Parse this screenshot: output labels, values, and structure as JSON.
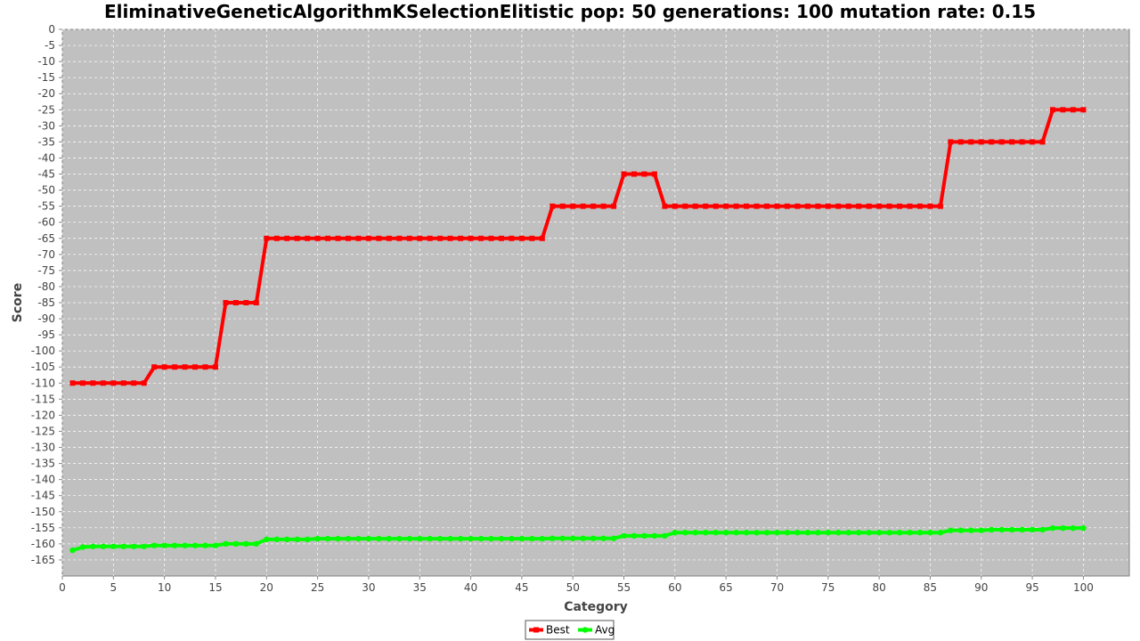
{
  "chart_data": {
    "type": "line",
    "title": "EliminativeGeneticAlgorithmKSelectionElitistic pop: 50 generations: 100 mutation rate: 0.15",
    "xlabel": "Category",
    "ylabel": "Score",
    "xlim": [
      0,
      104.5
    ],
    "ylim": [
      -170,
      0
    ],
    "x_ticks": [
      0,
      5,
      10,
      15,
      20,
      25,
      30,
      35,
      40,
      45,
      50,
      55,
      60,
      65,
      70,
      75,
      80,
      85,
      90,
      95,
      100
    ],
    "y_ticks": [
      0,
      -5,
      -10,
      -15,
      -20,
      -25,
      -30,
      -35,
      -40,
      -45,
      -50,
      -55,
      -60,
      -65,
      -70,
      -75,
      -80,
      -85,
      -90,
      -95,
      -100,
      -105,
      -110,
      -115,
      -120,
      -125,
      -130,
      -135,
      -140,
      -145,
      -150,
      -155,
      -160,
      -165
    ],
    "grid": true,
    "legend": "bottom-center",
    "background_color": "#c0c0c0",
    "x": [
      1,
      2,
      3,
      4,
      5,
      6,
      7,
      8,
      9,
      10,
      11,
      12,
      13,
      14,
      15,
      16,
      17,
      18,
      19,
      20,
      21,
      22,
      23,
      24,
      25,
      26,
      27,
      28,
      29,
      30,
      31,
      32,
      33,
      34,
      35,
      36,
      37,
      38,
      39,
      40,
      41,
      42,
      43,
      44,
      45,
      46,
      47,
      48,
      49,
      50,
      51,
      52,
      53,
      54,
      55,
      56,
      57,
      58,
      59,
      60,
      61,
      62,
      63,
      64,
      65,
      66,
      67,
      68,
      69,
      70,
      71,
      72,
      73,
      74,
      75,
      76,
      77,
      78,
      79,
      80,
      81,
      82,
      83,
      84,
      85,
      86,
      87,
      88,
      89,
      90,
      91,
      92,
      93,
      94,
      95,
      96,
      97,
      98,
      99,
      100
    ],
    "series": [
      {
        "name": "Best",
        "color": "#ff0000",
        "values": [
          -110,
          -110,
          -110,
          -110,
          -110,
          -110,
          -110,
          -110,
          -105,
          -105,
          -105,
          -105,
          -105,
          -105,
          -105,
          -85,
          -85,
          -85,
          -85,
          -65,
          -65,
          -65,
          -65,
          -65,
          -65,
          -65,
          -65,
          -65,
          -65,
          -65,
          -65,
          -65,
          -65,
          -65,
          -65,
          -65,
          -65,
          -65,
          -65,
          -65,
          -65,
          -65,
          -65,
          -65,
          -65,
          -65,
          -65,
          -55,
          -55,
          -55,
          -55,
          -55,
          -55,
          -55,
          -45,
          -45,
          -45,
          -45,
          -55,
          -55,
          -55,
          -55,
          -55,
          -55,
          -55,
          -55,
          -55,
          -55,
          -55,
          -55,
          -55,
          -55,
          -55,
          -55,
          -55,
          -55,
          -55,
          -55,
          -55,
          -55,
          -55,
          -55,
          -55,
          -55,
          -55,
          -55,
          -35,
          -35,
          -35,
          -35,
          -35,
          -35,
          -35,
          -35,
          -35,
          -35,
          -25,
          -25,
          -25,
          -25
        ]
      },
      {
        "name": "Avg",
        "color": "#00ff00",
        "values": [
          -162,
          -161,
          -160.8,
          -160.8,
          -160.8,
          -160.8,
          -160.8,
          -160.8,
          -160.5,
          -160.5,
          -160.5,
          -160.5,
          -160.5,
          -160.5,
          -160.5,
          -160,
          -160,
          -160,
          -160,
          -158.6,
          -158.6,
          -158.6,
          -158.6,
          -158.6,
          -158.4,
          -158.4,
          -158.4,
          -158.4,
          -158.4,
          -158.4,
          -158.4,
          -158.4,
          -158.4,
          -158.4,
          -158.4,
          -158.4,
          -158.4,
          -158.4,
          -158.4,
          -158.4,
          -158.4,
          -158.4,
          -158.4,
          -158.4,
          -158.4,
          -158.4,
          -158.4,
          -158.3,
          -158.3,
          -158.3,
          -158.3,
          -158.3,
          -158.3,
          -158.3,
          -157.5,
          -157.5,
          -157.5,
          -157.5,
          -157.5,
          -156.5,
          -156.5,
          -156.5,
          -156.5,
          -156.5,
          -156.5,
          -156.5,
          -156.5,
          -156.5,
          -156.5,
          -156.5,
          -156.5,
          -156.5,
          -156.5,
          -156.5,
          -156.5,
          -156.5,
          -156.5,
          -156.5,
          -156.5,
          -156.5,
          -156.5,
          -156.5,
          -156.5,
          -156.5,
          -156.5,
          -156.5,
          -155.8,
          -155.8,
          -155.8,
          -155.8,
          -155.6,
          -155.6,
          -155.6,
          -155.6,
          -155.6,
          -155.6,
          -155.1,
          -155.1,
          -155.1,
          -155.1
        ]
      }
    ]
  }
}
